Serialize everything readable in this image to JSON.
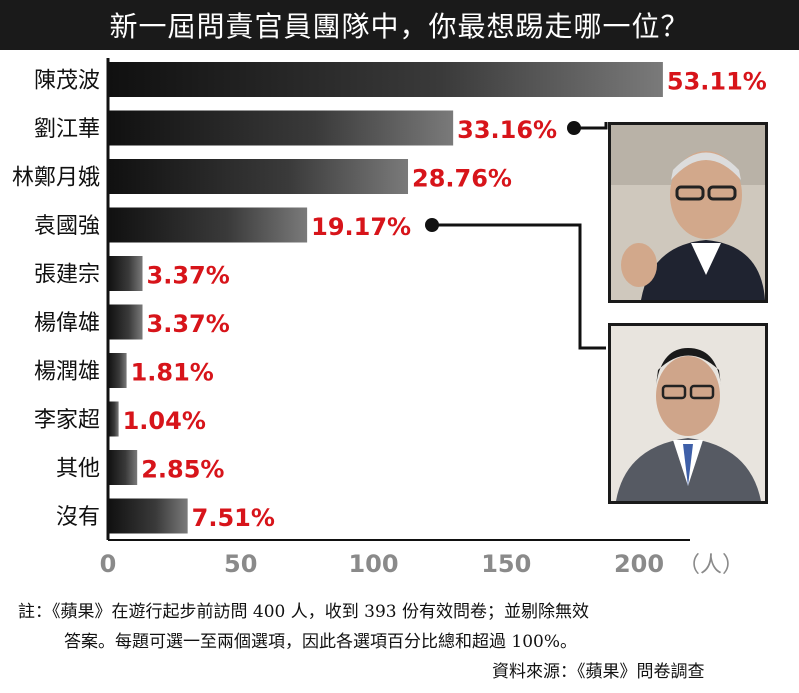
{
  "title": "新一屆問責官員團隊中，你最想踢走哪一位？",
  "chart_data": {
    "type": "bar",
    "orientation": "horizontal",
    "title": "新一屆問責官員團隊中，你最想踢走哪一位？",
    "categories": [
      "陳茂波",
      "劉江華",
      "林鄭月娥",
      "袁國強",
      "張建宗",
      "楊偉雄",
      "楊潤雄",
      "李家超",
      "其他",
      "沒有"
    ],
    "percent_labels": [
      "53.11%",
      "33.16%",
      "28.76%",
      "19.17%",
      "3.37%",
      "3.37%",
      "1.81%",
      "1.04%",
      "2.85%",
      "7.51%"
    ],
    "values": [
      209,
      130,
      113,
      75,
      13,
      13,
      7,
      4,
      11,
      30
    ],
    "x_ticks": [
      "0",
      "50",
      "100",
      "150",
      "200"
    ],
    "x_unit": "（人）",
    "xlim": [
      0,
      210
    ],
    "label_color": "#d7141a",
    "bar_color": "#1c1c1c"
  },
  "photos": [
    {
      "alt": "劉江華"
    },
    {
      "alt": "袁國強"
    }
  ],
  "notes": {
    "line1": "註：《蘋果》在遊行起步前訪問 400 人，收到 393 份有效問卷；並剔除無效",
    "line2": "答案。每題可選一至兩個選項，因此各選項百分比總和超過 100%。",
    "source": "資料來源：《蘋果》問卷調查"
  }
}
